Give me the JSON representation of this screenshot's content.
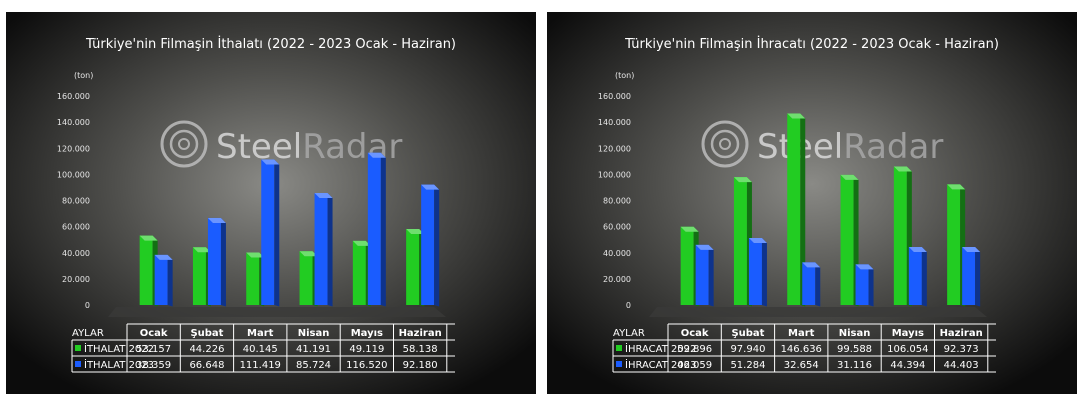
{
  "charts": [
    {
      "title": "Türkiye'nin Filmaşin İthalatı (2022 - 2023 Ocak - Haziran)",
      "unit": "(ton)",
      "watermark": {
        "part1": "Steel",
        "part2": "Radar"
      },
      "table_header": "AYLAR"
    },
    {
      "title": "Türkiye'nin Filmaşin İhracatı (2022 - 2023 Ocak - Haziran)",
      "unit": "(ton)",
      "watermark": {
        "part1": "Steel",
        "part2": "Radar"
      },
      "table_header": "AYLAR"
    }
  ],
  "chart_data": [
    {
      "type": "bar",
      "categories": [
        "Ocak",
        "Şubat",
        "Mart",
        "Nisan",
        "Mayıs",
        "Haziran"
      ],
      "series": [
        {
          "name": "İTHALAT 2022",
          "values": [
            53157,
            44226,
            40145,
            41191,
            49119,
            58138
          ],
          "labels": [
            "53.157",
            "44.226",
            "40.145",
            "41.191",
            "49.119",
            "58.138"
          ],
          "color": "#22cc22"
        },
        {
          "name": "İTHALAT 2023",
          "values": [
            38359,
            66648,
            111419,
            85724,
            116520,
            92180
          ],
          "labels": [
            "38.359",
            "66.648",
            "111.419",
            "85.724",
            "116.520",
            "92.180"
          ],
          "color": "#1a5cff"
        }
      ],
      "ylim": [
        0,
        160000
      ],
      "yticks": [
        "0",
        "20.000",
        "40.000",
        "60.000",
        "80.000",
        "100.000",
        "120.000",
        "140.000",
        "160.000"
      ],
      "grid": false,
      "legend": "table-bottom"
    },
    {
      "type": "bar",
      "categories": [
        "Ocak",
        "Şubat",
        "Mart",
        "Nisan",
        "Mayıs",
        "Haziran"
      ],
      "series": [
        {
          "name": "İHRACAT 2022",
          "values": [
            59896,
            97940,
            146636,
            99588,
            106054,
            92373
          ],
          "labels": [
            "59.896",
            "97.940",
            "146.636",
            "99.588",
            "106.054",
            "92.373"
          ],
          "color": "#22cc22"
        },
        {
          "name": "İHRACAT 2023",
          "values": [
            46059,
            51284,
            32654,
            31116,
            44394,
            44403
          ],
          "labels": [
            "46.059",
            "51.284",
            "32.654",
            "31.116",
            "44.394",
            "44.403"
          ],
          "color": "#1a5cff"
        }
      ],
      "ylim": [
        0,
        160000
      ],
      "yticks": [
        "0",
        "20.000",
        "40.000",
        "60.000",
        "80.000",
        "100.000",
        "120.000",
        "140.000",
        "160.000"
      ],
      "grid": false,
      "legend": "table-bottom"
    }
  ]
}
